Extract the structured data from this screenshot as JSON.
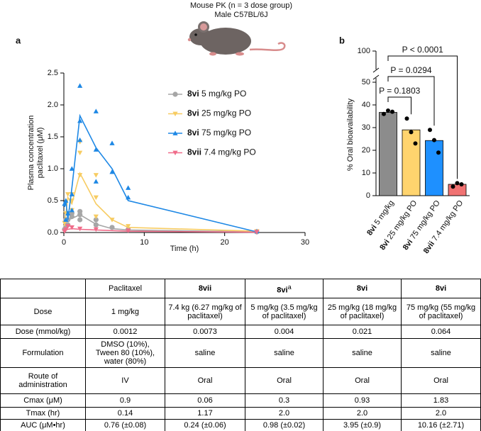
{
  "header": {
    "title": "Mouse PK (n = 3 dose group)",
    "subtitle": "Male C57BL/6J"
  },
  "chart_data": [
    {
      "type": "line",
      "panel": "a",
      "xlabel": "Time (h)",
      "ylabel": [
        "Plasma concentration",
        "paclitaxel (μM)"
      ],
      "xlim": [
        0,
        30
      ],
      "xticks": [
        0,
        10,
        20,
        30
      ],
      "ylim": [
        0,
        2.5
      ],
      "yticks": [
        {
          "value": 0,
          "label": "0.0"
        },
        0.5,
        {
          "value": 1,
          "label": "1.0"
        },
        1.5,
        {
          "value": 2,
          "label": "2.0"
        },
        2.5
      ],
      "legend": "upper right",
      "series": [
        {
          "name": "8vi 5 mg/kg PO",
          "color": "#a6a6a6",
          "marker": "circle",
          "x": [
            0.083,
            0.25,
            0.5,
            1,
            2,
            4,
            6,
            8,
            24
          ],
          "values": [
            0.05,
            0.15,
            0.2,
            0.22,
            0.28,
            0.13,
            0.06,
            0.04,
            0.01
          ],
          "replicates": {
            "x": [
              0.083,
              0.25,
              0.25,
              0.5,
              0.5,
              1,
              1,
              2,
              2,
              2,
              4,
              4,
              6,
              8,
              24
            ],
            "values": [
              0.05,
              0.1,
              0.2,
              0.2,
              0.12,
              0.3,
              0.25,
              0.33,
              0.28,
              0.2,
              0.2,
              0.12,
              0.08,
              0.05,
              0.01
            ]
          }
        },
        {
          "name": "8vi 25 mg/kg PO",
          "color": "#f7cc62",
          "marker": "triangle-down",
          "x": [
            0.083,
            0.25,
            0.5,
            1,
            2,
            4,
            6,
            8,
            24
          ],
          "values": [
            0.1,
            0.3,
            0.55,
            0.45,
            0.93,
            0.45,
            0.2,
            0.08,
            0.02
          ],
          "replicates": {
            "x": [
              0.083,
              0.25,
              0.5,
              0.5,
              1,
              1,
              1,
              2,
              2,
              2,
              4,
              4,
              4,
              6,
              8,
              24
            ],
            "values": [
              0.15,
              0.3,
              0.6,
              0.3,
              0.6,
              0.5,
              0.35,
              1.42,
              1.25,
              0.9,
              0.9,
              0.55,
              0.25,
              0.2,
              0.1,
              0.02
            ]
          }
        },
        {
          "name": "8vi 75 mg/kg PO",
          "color": "#1e88e5",
          "marker": "triangle-up",
          "x": [
            0.083,
            0.25,
            0.5,
            1,
            2,
            4,
            6,
            8,
            24
          ],
          "values": [
            0.4,
            0.5,
            0.2,
            0.7,
            1.83,
            1.33,
            1.0,
            0.5,
            0.01
          ],
          "replicates": {
            "x": [
              0.083,
              0.25,
              0.25,
              0.5,
              1,
              1,
              1,
              2,
              2,
              2,
              4,
              4,
              4,
              6,
              6,
              8,
              8,
              24
            ],
            "values": [
              0.45,
              0.5,
              0.2,
              0.3,
              1.0,
              0.6,
              0.35,
              2.3,
              1.75,
              1.45,
              1.9,
              1.3,
              0.8,
              1.4,
              0.95,
              0.7,
              0.55,
              0.02
            ]
          }
        },
        {
          "name": "8vii 7.4 mg/kg PO",
          "color": "#f06c8a",
          "marker": "triangle-down",
          "x": [
            0.083,
            0.25,
            0.5,
            1,
            2,
            4,
            6,
            8,
            24
          ],
          "values": [
            0.02,
            0.04,
            0.05,
            0.06,
            0.05,
            0.04,
            0.03,
            0.02,
            0.005
          ],
          "replicates": {
            "x": [
              0.083,
              0.25,
              0.5,
              1,
              2,
              4,
              8,
              24
            ],
            "values": [
              0.02,
              0.05,
              0.1,
              0.08,
              0.06,
              0.05,
              0.03,
              0.01
            ]
          }
        }
      ]
    },
    {
      "type": "bar",
      "panel": "b",
      "ylabel": "% Oral bioavailability",
      "ylim": [
        0,
        100
      ],
      "yticks": [
        0,
        10,
        20,
        30,
        40,
        50,
        100
      ],
      "y_break": 50,
      "categories": [
        "8vi 5 mg/kg",
        "8vi 25 mg/kg PO",
        "8vi 75 mg/kg PO",
        "8vii 7.4 mg/kg PO"
      ],
      "values": [
        36.7,
        29,
        24.3,
        5
      ],
      "colors": [
        "#8c8c8c",
        "#ffd46e",
        "#1e90ff",
        "#f07272"
      ],
      "points": [
        [
          36,
          37.5,
          37
        ],
        [
          34,
          28,
          23
        ],
        [
          29,
          24.5,
          19
        ],
        [
          4,
          5.5,
          5
        ]
      ],
      "comparisons": [
        {
          "between": [
            "8vi 5 mg/kg",
            "8vi 25 mg/kg PO"
          ],
          "label": "P = 0.1803"
        },
        {
          "between": [
            "8vi 5 mg/kg",
            "8vi 75 mg/kg PO"
          ],
          "label": "P = 0.0294"
        },
        {
          "between": [
            "8vi 5 mg/kg",
            "8vii 7.4 mg/kg PO"
          ],
          "label": "P < 0.0001"
        }
      ]
    }
  ],
  "table": {
    "columns": [
      {
        "text": "Paclitaxel"
      },
      {
        "text": "8vii",
        "bold": true
      },
      {
        "text": "8vi",
        "bold": true,
        "sup": "a"
      },
      {
        "text": "8vi",
        "bold": true
      },
      {
        "text": "8vi",
        "bold": true
      }
    ],
    "rows": [
      {
        "label": "Dose",
        "cells": [
          "1 mg/kg",
          "7.4 kg (6.27 mg/kg of paclitaxel)",
          "5 mg/kg (3.5 mg/kg of paclitaxel)",
          "25 mg/kg (18 mg/kg of paclitaxel)",
          "75 mg/kg (55 mg/kg of paclitaxel)"
        ]
      },
      {
        "label": "Dose (mmol/kg)",
        "cells": [
          "0.0012",
          "0.0073",
          "0.004",
          "0.021",
          "0.064"
        ]
      },
      {
        "label": "Formulation",
        "cells": [
          "DMSO (10%), Tween 80 (10%), water (80%)",
          "saline",
          "saline",
          "saline",
          "saline"
        ]
      },
      {
        "label": "Route of administration",
        "cells": [
          "IV",
          "Oral",
          "Oral",
          "Oral",
          "Oral"
        ]
      },
      {
        "label": "Cmax (μM)",
        "cells": [
          "0.9",
          "0.06",
          "0.3",
          "0.93",
          "1.83"
        ]
      },
      {
        "label": "Tmax (hr)",
        "cells": [
          "0.14",
          "1.17",
          "2.0",
          "2.0",
          "2.0"
        ]
      },
      {
        "label": "AUC (μM•hr)",
        "cells": [
          "0.76 (±0.08)",
          "0.24 (±0.06)",
          "0.98 (±0.02)",
          "3.95 (±0.9)",
          "10.16 (±2.71)"
        ]
      }
    ]
  }
}
